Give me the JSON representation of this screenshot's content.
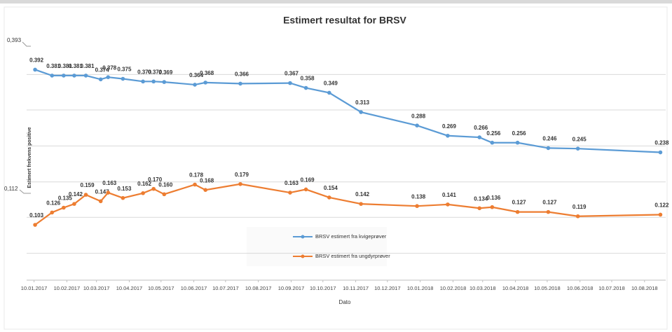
{
  "chart_data": {
    "type": "line",
    "title": "Estimert resultat for BRSV",
    "xlabel": "Dato",
    "ylabel": "Estimert frekvens positive",
    "annotations": [
      "0,393",
      "0,112"
    ],
    "x": [
      "11.01.2017",
      "27.01.2017",
      "07.02.2017",
      "17.02.2017",
      "28.02.2017",
      "14.03.2017",
      "21.03.2017",
      "04.04.2017",
      "23.04.2017",
      "03.05.2017",
      "13.05.2017",
      "11.06.2017",
      "21.06.2017",
      "24.07.2017",
      "09.09.2017",
      "24.09.2017",
      "16.10.2017",
      "15.11.2017",
      "07.01.2018",
      "05.02.2018",
      "07.03.2018",
      "19.03.2018",
      "12.04.2018",
      "11.05.2018",
      "08.06.2018",
      "25.08.2018"
    ],
    "series": [
      {
        "name": "BRSV estimert fra kvigeprøver",
        "color": "#5b9bd5",
        "values": [
          0.392,
          0.381,
          0.381,
          0.381,
          0.381,
          0.374,
          0.378,
          0.375,
          0.37,
          0.37,
          0.369,
          0.364,
          0.368,
          0.366,
          0.367,
          0.358,
          0.349,
          0.313,
          0.288,
          0.269,
          0.266,
          0.256,
          0.256,
          0.246,
          0.245,
          0.238
        ],
        "value_labels": [
          "0.392",
          "0.381",
          "0.381",
          "0.381",
          "0.381",
          "0.374",
          "0.378",
          "0.375",
          "0.370",
          "0.370",
          "0.369",
          "0.364",
          "0.368",
          "0.366",
          "0.367",
          "0.358",
          "0.349",
          "0.313",
          "0.288",
          "0.269",
          "0.266",
          "0.256",
          "0.256",
          "0.246",
          "0.245",
          "0.238"
        ]
      },
      {
        "name": "BRSV estimert fra ungdyrprøver",
        "color": "#ed7d31",
        "values": [
          0.103,
          0.126,
          0.135,
          0.142,
          0.159,
          0.147,
          0.163,
          0.153,
          0.162,
          0.17,
          0.16,
          0.178,
          0.168,
          0.179,
          0.163,
          0.169,
          0.154,
          0.142,
          0.138,
          0.141,
          0.134,
          0.136,
          0.127,
          0.127,
          0.119,
          0.122
        ],
        "value_labels": [
          "0.103",
          "0.126",
          "0.135",
          "0.142",
          "0.159",
          "0.147",
          "0.163",
          "0.153",
          "0.162",
          "0.170",
          "0.160",
          "0.178",
          "0.168",
          "0.179",
          "0.163",
          "0.169",
          "0.154",
          "0.142",
          "0.138",
          "0.141",
          "0.134",
          "0.136",
          "0.127",
          "0.127",
          "0.119",
          "0.122"
        ]
      }
    ],
    "xlim": [
      "03.01.2017",
      "30.08.2018"
    ],
    "xticks": [
      "10.01.2017",
      "10.02.2017",
      "10.03.2017",
      "10.04.2017",
      "10.05.2017",
      "10.06.2017",
      "10.07.2017",
      "10.08.2017",
      "10.09.2017",
      "10.10.2017",
      "10.11.2017",
      "10.12.2017",
      "10.01.2018",
      "10.02.2018",
      "10.03.2018",
      "10.04.2018",
      "10.05.2018",
      "10.06.2018",
      "10.07.2018",
      "10.08.2018"
    ],
    "ylim": [
      0,
      0.45
    ],
    "yticks": [
      0.05,
      0.117,
      0.183,
      0.25,
      0.317,
      0.383
    ],
    "show_ytick_labels": false,
    "grid": true
  }
}
